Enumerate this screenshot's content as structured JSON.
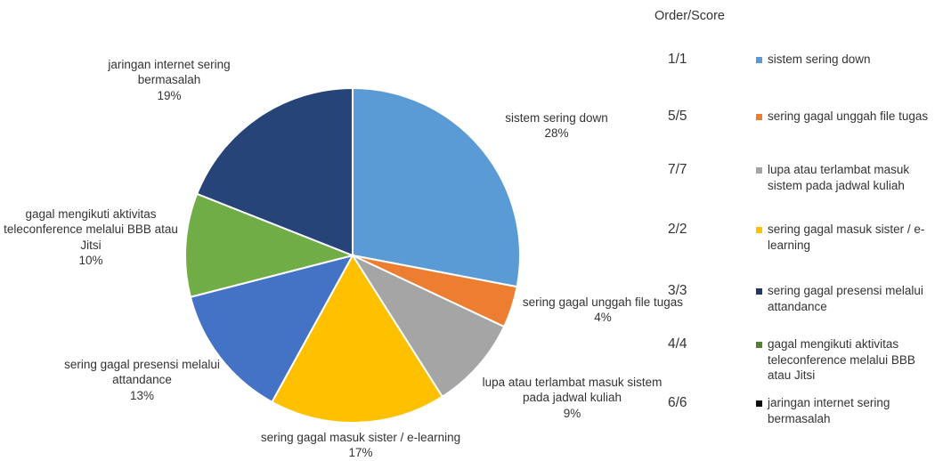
{
  "chart_data": {
    "type": "pie",
    "slices": [
      {
        "label": "sistem sering down",
        "value": 28,
        "pct_label": "28%",
        "color": "#5B9BD5"
      },
      {
        "label": "sering gagal unggah file tugas",
        "value": 4,
        "pct_label": "4%",
        "color": "#ED7D31"
      },
      {
        "label": "lupa atau terlambat masuk sistem pada jadwal kuliah",
        "value": 9,
        "pct_label": "9%",
        "color": "#A5A5A5"
      },
      {
        "label": "sering gagal masuk sister / e-learning",
        "value": 17,
        "pct_label": "17%",
        "color": "#FFC000"
      },
      {
        "label": "sering gagal presensi melalui attandance",
        "value": 13,
        "pct_label": "13%",
        "color": "#4472C4"
      },
      {
        "label": "gagal mengikuti aktivitas teleconference melalui BBB atau Jitsi",
        "value": 10,
        "pct_label": "10%",
        "color": "#70AD47"
      },
      {
        "label": "jaringan internet sering bermasalah",
        "value": 19,
        "pct_label": "19%",
        "color": "#264478"
      }
    ]
  },
  "legend": {
    "header": "Order/Score",
    "items": [
      {
        "order": "1/1",
        "label": "sistem sering down",
        "color": "#5B9BD5"
      },
      {
        "order": "5/5",
        "label": "sering gagal unggah file tugas",
        "color": "#ED7D31"
      },
      {
        "order": "7/7",
        "label": "lupa atau terlambat masuk sistem pada jadwal kuliah",
        "color": "#A5A5A5"
      },
      {
        "order": "2/2",
        "label": "sering gagal masuk sister / e-learning",
        "color": "#FFC000"
      },
      {
        "order": "3/3",
        "label": "sering gagal presensi melalui attandance",
        "color": "#1F3864"
      },
      {
        "order": "4/4",
        "label": "gagal mengikuti aktivitas teleconference melalui BBB atau Jitsi",
        "color": "#548235"
      },
      {
        "order": "6/6",
        "label": "jaringan internet sering bermasalah",
        "color": "#0D0D0D"
      }
    ]
  }
}
